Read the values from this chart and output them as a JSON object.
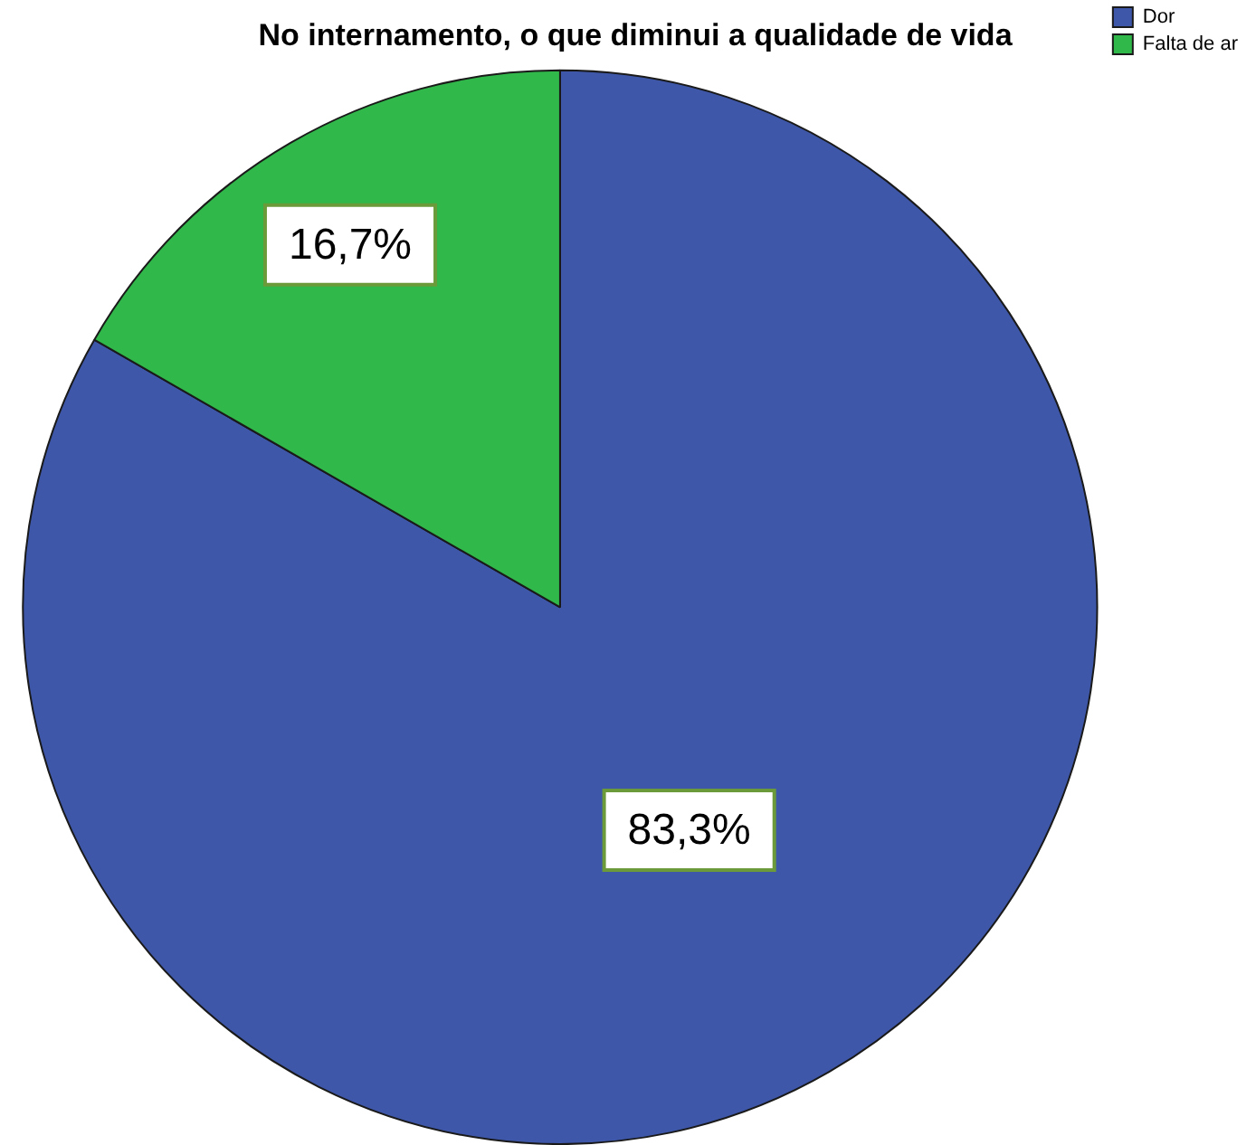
{
  "chart_data": {
    "type": "pie",
    "title": "No internamento, o que diminui a qualidade de vida",
    "categories": [
      "Dor",
      "Falta de ar"
    ],
    "values": [
      83.3,
      16.7
    ],
    "colors": [
      "#3e57a8",
      "#30b84a"
    ],
    "value_labels": [
      "83,3%",
      "16,7%"
    ],
    "legend": "top right"
  }
}
